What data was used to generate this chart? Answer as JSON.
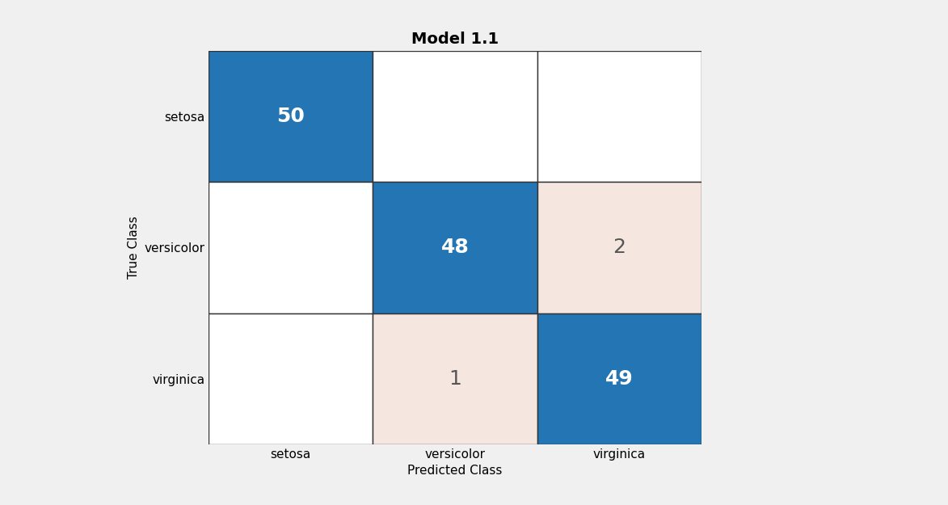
{
  "title": "Model 1.1",
  "xlabel": "Predicted Class",
  "ylabel": "True Class",
  "classes": [
    "setosa",
    "versicolor",
    "virginica"
  ],
  "matrix": [
    [
      50,
      0,
      0
    ],
    [
      0,
      48,
      2
    ],
    [
      0,
      1,
      49
    ]
  ],
  "diagonal_color": "#2475b4",
  "off_diagonal_nonzero_color": "#f5e6e0",
  "off_diagonal_zero_color": "#ffffff",
  "diagonal_text_color": "#ffffff",
  "off_diagonal_nonzero_text_color": "#555555",
  "off_diagonal_zero_text_color": "#555555",
  "grid_color": "#333333",
  "background_color": "#f0f0f0",
  "title_fontsize": 14,
  "axis_label_fontsize": 11,
  "tick_label_fontsize": 11,
  "value_fontsize": 18
}
